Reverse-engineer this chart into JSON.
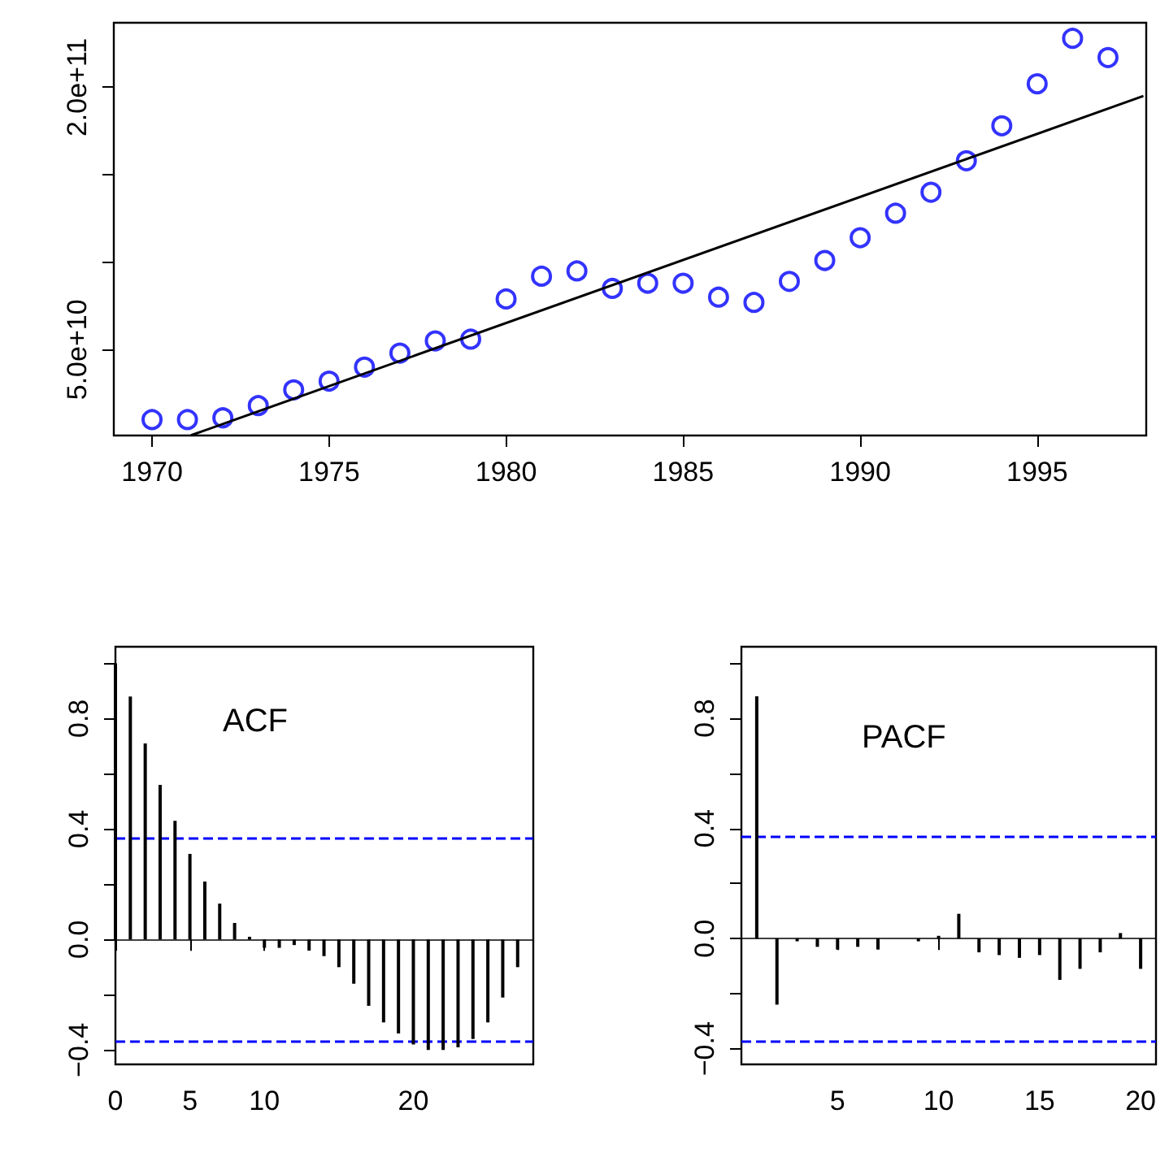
{
  "chart_data": [
    {
      "type": "scatter",
      "xlim": [
        1968.92,
        1998.08
      ],
      "ylim": [
        900000000.0,
        236900000000.0
      ],
      "xticks": [
        1970,
        1975,
        1980,
        1985,
        1990,
        1995
      ],
      "yticks": [
        {
          "value": 50000000000.0,
          "label": "5.0e+10"
        },
        {
          "value": 100000000000.0,
          "label": null
        },
        {
          "value": 150000000000.0,
          "label": null
        },
        {
          "value": 200000000000.0,
          "label": "2.0e+11"
        }
      ],
      "marker": "circle",
      "series": [
        {
          "color": "#0000ff",
          "x": [
            1970,
            1971,
            1972,
            1973,
            1974,
            1975,
            1976,
            1977,
            1978,
            1979,
            1980,
            1981,
            1982,
            1983,
            1984,
            1985,
            1986,
            1987,
            1988,
            1989,
            1990,
            1991,
            1992,
            1993,
            1994,
            1995,
            1996,
            1997
          ],
          "values": [
            10000000000.0,
            10000000000.0,
            11000000000.0,
            18000000000.0,
            27000000000.0,
            32000000000.0,
            40000000000.0,
            48000000000.0,
            55000000000.0,
            56000000000.0,
            79000000000.0,
            92000000000.0,
            95000000000.0,
            85000000000.0,
            88000000000.0,
            88000000000.0,
            80000000000.0,
            77000000000.0,
            89000000000.0,
            101000000000.0,
            114000000000.0,
            128000000000.0,
            140000000000.0,
            158000000000.0,
            178000000000.0,
            202000000000.0,
            228000000000.0,
            217000000000.0
          ]
        },
        {
          "type": "line",
          "color": "#000000",
          "marker": "none",
          "x": [
            1971.1,
            1998
          ],
          "values": [
            1000000000.0,
            195000000000.0
          ]
        }
      ]
    },
    {
      "type": "bar",
      "annotations": [
        "ACF"
      ],
      "color": "#000000",
      "x": [
        0,
        1,
        2,
        3,
        4,
        5,
        6,
        7,
        8,
        9,
        10,
        11,
        12,
        13,
        14,
        15,
        16,
        17,
        18,
        19,
        20,
        21,
        22,
        23,
        24,
        25,
        26,
        27
      ],
      "values": [
        1,
        0.88,
        0.71,
        0.56,
        0.43,
        0.31,
        0.21,
        0.13,
        0.06,
        0.01,
        -0.03,
        -0.03,
        -0.02,
        -0.04,
        -0.06,
        -0.1,
        -0.16,
        -0.24,
        -0.3,
        -0.34,
        -0.38,
        -0.4,
        -0.4,
        -0.39,
        -0.36,
        -0.3,
        -0.21,
        -0.1
      ],
      "xlim": [
        0,
        28.05
      ],
      "xticks": [
        0,
        5,
        10,
        {
          "value": 15,
          "label": null
        },
        20,
        {
          "value": 25,
          "label": null
        }
      ],
      "ylim": [
        -0.452,
        1.06
      ],
      "yticks": [
        {
          "value": -0.4,
          "label": "−0.4"
        },
        {
          "value": -0.2,
          "label": null
        },
        {
          "value": 0,
          "label": "0.0"
        },
        {
          "value": 0.2,
          "label": null
        },
        {
          "value": 0.4,
          "label": "0.4"
        },
        {
          "value": 0.6,
          "label": null
        },
        {
          "value": 0.8,
          "label": "0.8"
        },
        {
          "value": 1.0,
          "label": null
        }
      ],
      "ref_lines": [
        {
          "axis": "y",
          "value": 0,
          "color": "#000000",
          "line_style": "solid"
        },
        {
          "axis": "y",
          "value": 0.37,
          "color": "#0000ff",
          "line_style": "dashed"
        },
        {
          "axis": "y",
          "value": -0.37,
          "color": "#0000ff",
          "line_style": "dashed"
        }
      ]
    },
    {
      "type": "bar",
      "annotations": [
        "PACF"
      ],
      "color": "#000000",
      "x": [
        1,
        2,
        3,
        4,
        5,
        6,
        7,
        8,
        9,
        10,
        11,
        12,
        13,
        14,
        15,
        16,
        17,
        18,
        19,
        20
      ],
      "values": [
        0.88,
        -0.24,
        -0.01,
        -0.03,
        -0.04,
        -0.03,
        -0.04,
        0.0,
        -0.01,
        0.01,
        0.09,
        -0.05,
        -0.06,
        -0.07,
        -0.06,
        -0.15,
        -0.11,
        -0.05,
        0.02,
        -0.11
      ],
      "xlim": [
        0.24,
        20.76
      ],
      "xticks": [
        5,
        10,
        15,
        20
      ],
      "ylim": [
        -0.457,
        1.06
      ],
      "yticks": [
        {
          "value": -0.4,
          "label": "−0.4"
        },
        {
          "value": -0.2,
          "label": null
        },
        {
          "value": 0,
          "label": "0.0"
        },
        {
          "value": 0.2,
          "label": null
        },
        {
          "value": 0.4,
          "label": "0.4"
        },
        {
          "value": 0.6,
          "label": null
        },
        {
          "value": 0.8,
          "label": "0.8"
        },
        {
          "value": 1.0,
          "label": null
        }
      ],
      "ref_lines": [
        {
          "axis": "y",
          "value": 0,
          "color": "#000000",
          "line_style": "solid"
        },
        {
          "axis": "y",
          "value": 0.37,
          "color": "#0000ff",
          "line_style": "dashed"
        },
        {
          "axis": "y",
          "value": -0.37,
          "color": "#0000ff",
          "line_style": "dashed"
        }
      ]
    }
  ]
}
